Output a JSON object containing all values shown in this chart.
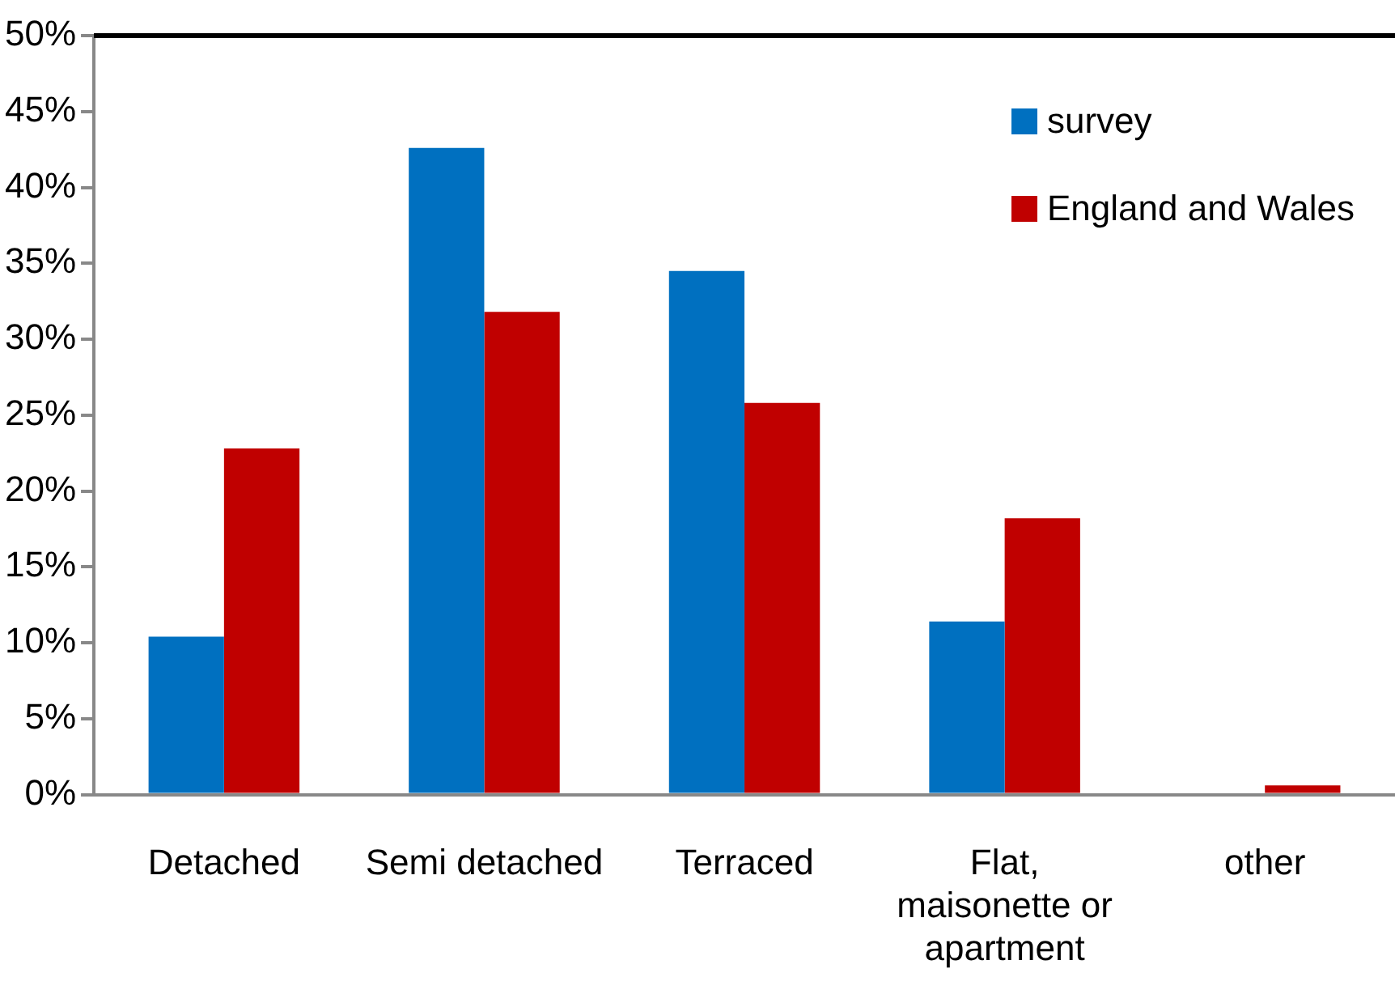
{
  "chart_data": {
    "type": "bar",
    "categories": [
      "Detached",
      "Semi detached",
      "Terraced",
      "Flat, maisonette or apartment",
      "other"
    ],
    "series": [
      {
        "name": "survey",
        "color": "#0070c0",
        "values": [
          10.4,
          42.6,
          34.5,
          11.4,
          0
        ]
      },
      {
        "name": "England and Wales",
        "color": "#c00000",
        "values": [
          22.8,
          31.8,
          25.8,
          18.2,
          0.6
        ]
      }
    ],
    "ylim": [
      0,
      50
    ],
    "yticks": [
      {
        "value": 0,
        "label": "0%"
      },
      {
        "value": 5,
        "label": "5%"
      },
      {
        "value": 10,
        "label": "10%"
      },
      {
        "value": 15,
        "label": "15%"
      },
      {
        "value": 20,
        "label": "20%"
      },
      {
        "value": 25,
        "label": "25%"
      },
      {
        "value": 30,
        "label": "30%"
      },
      {
        "value": 35,
        "label": "35%"
      },
      {
        "value": 40,
        "label": "40%"
      },
      {
        "value": 45,
        "label": "45%"
      },
      {
        "value": 50,
        "label": "50%"
      }
    ],
    "grid": false,
    "legend": "top right"
  }
}
